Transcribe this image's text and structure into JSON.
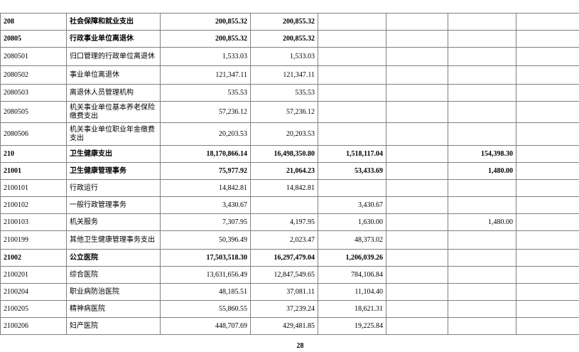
{
  "table": {
    "rows": [
      {
        "bold": true,
        "cells": [
          "208",
          "社会保障和就业支出",
          "200,855.32",
          "200,855.32",
          "",
          "",
          "",
          ""
        ]
      },
      {
        "bold": true,
        "cells": [
          "20805",
          "行政事业单位离退休",
          "200,855.32",
          "200,855.32",
          "",
          "",
          "",
          ""
        ]
      },
      {
        "bold": false,
        "cells": [
          "2080501",
          "归口管理的行政单位离退休",
          "1,533.03",
          "1,533.03",
          "",
          "",
          "",
          ""
        ]
      },
      {
        "bold": false,
        "cells": [
          "2080502",
          "事业单位离退休",
          "121,347.11",
          "121,347.11",
          "",
          "",
          "",
          ""
        ]
      },
      {
        "bold": false,
        "cells": [
          "2080503",
          "离退休人员管理机构",
          "535.53",
          "535.53",
          "",
          "",
          "",
          ""
        ]
      },
      {
        "bold": false,
        "cells": [
          "2080505",
          "机关事业单位基本养老保险缴费支出",
          "57,236.12",
          "57,236.12",
          "",
          "",
          "",
          ""
        ]
      },
      {
        "bold": false,
        "cells": [
          "2080506",
          "机关事业单位职业年金缴费支出",
          "20,203.53",
          "20,203.53",
          "",
          "",
          "",
          ""
        ]
      },
      {
        "bold": true,
        "cells": [
          "210",
          "卫生健康支出",
          "18,170,866.14",
          "16,498,350.80",
          "1,518,117.04",
          "",
          "154,398.30",
          ""
        ]
      },
      {
        "bold": true,
        "cells": [
          "21001",
          "卫生健康管理事务",
          "75,977.92",
          "21,064.23",
          "53,433.69",
          "",
          "1,480.00",
          ""
        ]
      },
      {
        "bold": false,
        "cells": [
          "2100101",
          "行政运行",
          "14,842.81",
          "14,842.81",
          "",
          "",
          "",
          ""
        ]
      },
      {
        "bold": false,
        "cells": [
          "2100102",
          "一般行政管理事务",
          "3,430.67",
          "",
          "3,430.67",
          "",
          "",
          ""
        ]
      },
      {
        "bold": false,
        "cells": [
          "2100103",
          "机关服务",
          "7,307.95",
          "4,197.95",
          "1,630.00",
          "",
          "1,480.00",
          ""
        ]
      },
      {
        "bold": false,
        "cells": [
          "2100199",
          "其他卫生健康管理事务支出",
          "50,396.49",
          "2,023.47",
          "48,373.02",
          "",
          "",
          ""
        ]
      },
      {
        "bold": true,
        "cells": [
          "21002",
          "公立医院",
          "17,503,518.30",
          "16,297,479.04",
          "1,206,039.26",
          "",
          "",
          ""
        ]
      },
      {
        "bold": false,
        "cells": [
          "2100201",
          "综合医院",
          "13,631,656.49",
          "12,847,549.65",
          "784,106.84",
          "",
          "",
          ""
        ]
      },
      {
        "bold": false,
        "cells": [
          "2100204",
          "职业病防治医院",
          "48,185.51",
          "37,081.11",
          "11,104.40",
          "",
          "",
          ""
        ]
      },
      {
        "bold": false,
        "cells": [
          "2100205",
          "精神病医院",
          "55,860.55",
          "37,239.24",
          "18,621.31",
          "",
          "",
          ""
        ]
      },
      {
        "bold": false,
        "cells": [
          "2100206",
          "妇产医院",
          "448,707.69",
          "429,481.85",
          "19,225.84",
          "",
          "",
          ""
        ]
      }
    ]
  },
  "footer": {
    "page_number": "28"
  }
}
